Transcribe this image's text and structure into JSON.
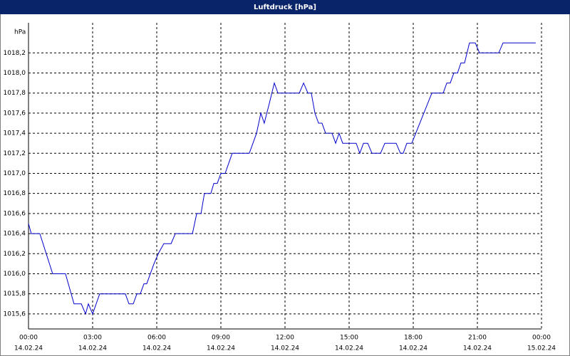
{
  "chart_data": {
    "type": "line",
    "title": "Luftdruck [hPa]",
    "y_label": "hPa",
    "series": [
      {
        "color": "#0000cc",
        "x": [
          0,
          0.13,
          0.53,
          1.13,
          1.73,
          2.13,
          2.47,
          2.67,
          2.8,
          3.0,
          3.33,
          4.53,
          4.7,
          4.9,
          5.07,
          5.23,
          5.4,
          5.53,
          5.87,
          6.07,
          6.33,
          6.67,
          6.87,
          7.67,
          7.87,
          8.07,
          8.23,
          8.53,
          8.67,
          8.83,
          9.0,
          9.2,
          9.53,
          10.33,
          10.67,
          10.87,
          11.03,
          11.27,
          11.5,
          11.67,
          12.67,
          12.87,
          13.07,
          13.23,
          13.4,
          13.57,
          13.73,
          13.9,
          14.2,
          14.37,
          14.53,
          14.7,
          15.33,
          15.5,
          15.67,
          15.87,
          16.07,
          16.47,
          16.67,
          17.2,
          17.4,
          17.53,
          17.7,
          17.93,
          18.87,
          19.4,
          19.57,
          19.73,
          19.9,
          20.07,
          20.23,
          20.4,
          20.63,
          20.9,
          21.1,
          22.0,
          22.2,
          23.73
        ],
        "values": [
          1016.5,
          1016.4,
          1016.4,
          1016.0,
          1016.0,
          1015.7,
          1015.7,
          1015.6,
          1015.7,
          1015.6,
          1015.8,
          1015.8,
          1015.7,
          1015.7,
          1015.8,
          1015.8,
          1015.9,
          1015.9,
          1016.1,
          1016.2,
          1016.3,
          1016.3,
          1016.4,
          1016.4,
          1016.6,
          1016.6,
          1016.8,
          1016.8,
          1016.9,
          1016.9,
          1017.0,
          1017.0,
          1017.2,
          1017.2,
          1017.4,
          1017.6,
          1017.5,
          1017.7,
          1017.9,
          1017.8,
          1017.8,
          1017.9,
          1017.8,
          1017.8,
          1017.6,
          1017.5,
          1017.5,
          1017.4,
          1017.4,
          1017.3,
          1017.4,
          1017.3,
          1017.3,
          1017.2,
          1017.3,
          1017.3,
          1017.2,
          1017.2,
          1017.3,
          1017.3,
          1017.2,
          1017.2,
          1017.3,
          1017.3,
          1017.8,
          1017.8,
          1017.9,
          1017.9,
          1018.0,
          1018.0,
          1018.1,
          1018.1,
          1018.3,
          1018.3,
          1018.2,
          1018.2,
          1018.3,
          1018.3
        ]
      }
    ],
    "xlim": [
      0,
      24
    ],
    "xticks": [
      {
        "value": 0,
        "label": "00:00",
        "date": "14.02.24"
      },
      {
        "value": 3,
        "label": "03:00",
        "date": "14.02.24"
      },
      {
        "value": 6,
        "label": "06:00",
        "date": "14.02.24"
      },
      {
        "value": 9,
        "label": "09:00",
        "date": "14.02.24"
      },
      {
        "value": 12,
        "label": "12:00",
        "date": "14.02.24"
      },
      {
        "value": 15,
        "label": "15:00",
        "date": "14.02.24"
      },
      {
        "value": 18,
        "label": "18:00",
        "date": "14.02.24"
      },
      {
        "value": 21,
        "label": "21:00",
        "date": "14.02.24"
      },
      {
        "value": 24,
        "label": "00:00",
        "date": "15.02.24"
      }
    ],
    "ylim": [
      1015.45,
      1018.5
    ],
    "yticks": [
      {
        "value": 1015.6,
        "label": "1015,6"
      },
      {
        "value": 1015.8,
        "label": "1015,8"
      },
      {
        "value": 1016.0,
        "label": "1016,0"
      },
      {
        "value": 1016.2,
        "label": "1016,2"
      },
      {
        "value": 1016.4,
        "label": "1016,4"
      },
      {
        "value": 1016.6,
        "label": "1016,6"
      },
      {
        "value": 1016.8,
        "label": "1016,8"
      },
      {
        "value": 1017.0,
        "label": "1017,0"
      },
      {
        "value": 1017.2,
        "label": "1017,2"
      },
      {
        "value": 1017.4,
        "label": "1017,4"
      },
      {
        "value": 1017.6,
        "label": "1017,6"
      },
      {
        "value": 1017.8,
        "label": "1017,8"
      },
      {
        "value": 1018.0,
        "label": "1018,0"
      },
      {
        "value": 1018.2,
        "label": "1018,2"
      }
    ],
    "grid": true
  }
}
